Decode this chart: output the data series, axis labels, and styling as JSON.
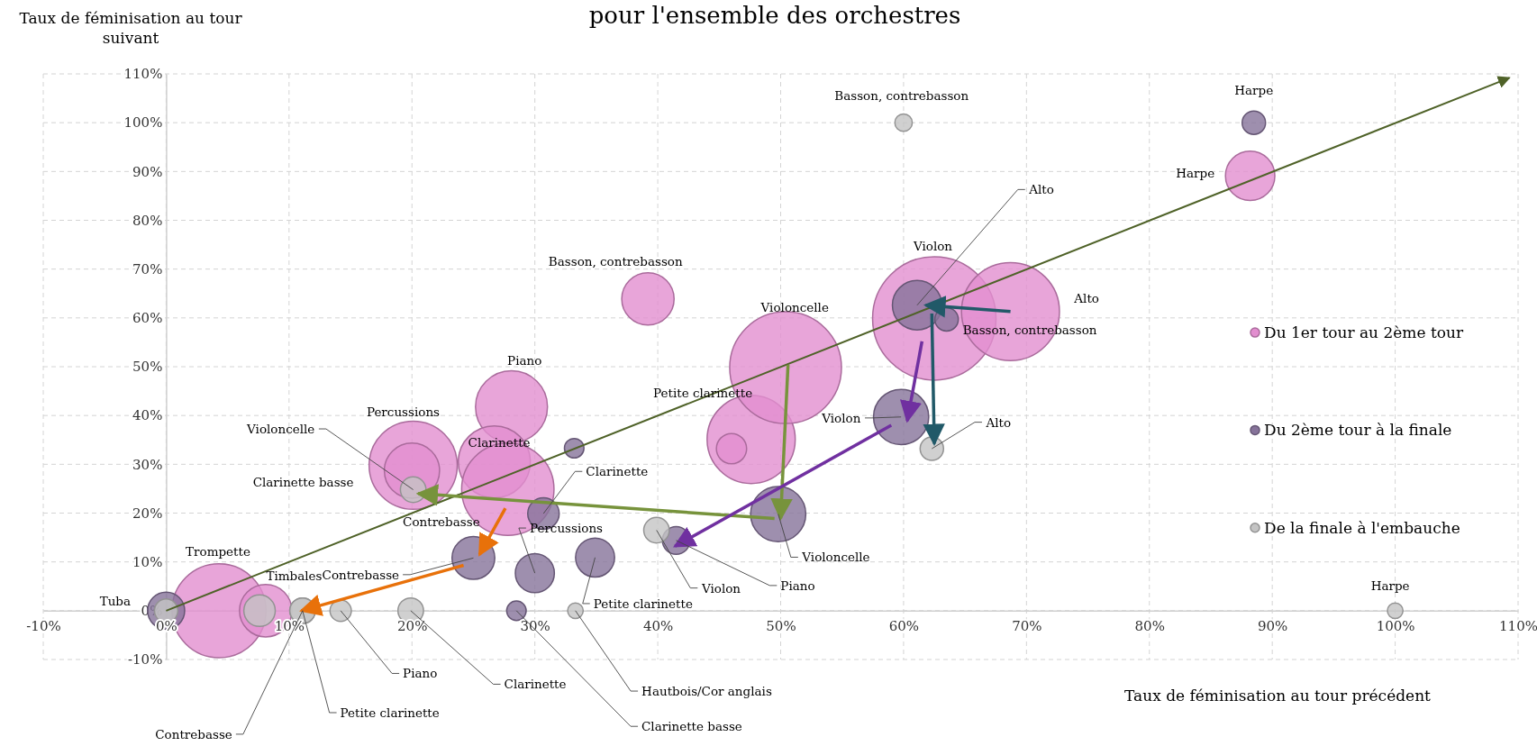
{
  "chart_data": {
    "type": "bubble",
    "title": "pour l'ensemble des orchestres",
    "xlabel": "Taux de féminisation au tour précédent",
    "ylabel": "Taux de féminisation au tour suivant",
    "xlim": [
      -10,
      110
    ],
    "ylim": [
      -10,
      110
    ],
    "xticks": [
      {
        "value": -10,
        "label": "-10%"
      },
      {
        "value": 0,
        "label": "0%"
      },
      {
        "value": 10,
        "label": "10%"
      },
      {
        "value": 20,
        "label": "20%"
      },
      {
        "value": 30,
        "label": "30%"
      },
      {
        "value": 40,
        "label": "40%"
      },
      {
        "value": 50,
        "label": "50%"
      },
      {
        "value": 60,
        "label": "60%"
      },
      {
        "value": 70,
        "label": "70%"
      },
      {
        "value": 80,
        "label": "80%"
      },
      {
        "value": 90,
        "label": "90%"
      },
      {
        "value": 100,
        "label": "100%"
      },
      {
        "value": 110,
        "label": "110%"
      }
    ],
    "yticks": [
      {
        "value": -10,
        "label": "-10%"
      },
      {
        "value": 0,
        "label": "0%"
      },
      {
        "value": 10,
        "label": "10%"
      },
      {
        "value": 20,
        "label": "20%"
      },
      {
        "value": 30,
        "label": "30%"
      },
      {
        "value": 40,
        "label": "40%"
      },
      {
        "value": 50,
        "label": "50%"
      },
      {
        "value": 60,
        "label": "60%"
      },
      {
        "value": 70,
        "label": "70%"
      },
      {
        "value": 80,
        "label": "80%"
      },
      {
        "value": 90,
        "label": "90%"
      },
      {
        "value": 100,
        "label": "100%"
      },
      {
        "value": 110,
        "label": "110%"
      }
    ],
    "grid": true,
    "legend": "right",
    "series": [
      {
        "name": "Du 1er tour au 2ème tour",
        "color": "#e28ecf",
        "x": [
          39.2,
          28.1,
          20.1,
          20,
          26.7,
          27.8,
          4.3,
          8.1,
          47.6,
          50.4,
          62.5,
          68.7,
          88.2,
          46
        ],
        "values": [
          63.9,
          41.8,
          29.8,
          28.7,
          30.5,
          24.9,
          0,
          0,
          35.1,
          49.8,
          59.9,
          61.3,
          89.1,
          33.2
        ],
        "sizes": [
          0.18,
          0.34,
          0.51,
          0.2,
          0.34,
          0.56,
          0.58,
          0.18,
          0.51,
          0.82,
          1,
          0.63,
          0.16,
          0.06
        ]
      },
      {
        "name": "Du 2ème tour à la finale",
        "color": "#86739a",
        "x": [
          0,
          59.8,
          61.1,
          63.5,
          88.5,
          49.8,
          25,
          30,
          34.9,
          30.7,
          41.5,
          28.5,
          33.2
        ],
        "values": [
          0,
          39.7,
          62.6,
          59.7,
          100,
          19.8,
          10.8,
          7.7,
          10.9,
          19.9,
          14.4,
          0,
          33.3
        ],
        "sizes": [
          0.09,
          0.2,
          0.16,
          0.036,
          0.036,
          0.2,
          0.12,
          0.1,
          0.1,
          0.065,
          0.05,
          0.025,
          0.025
        ]
      },
      {
        "name": "De la finale à l'embauche",
        "color": "#c4c4c4",
        "x": [
          60,
          100,
          62.3,
          39.9,
          20.1,
          11.1,
          11.1,
          14.2,
          19.9,
          33.3,
          7.6,
          0
        ],
        "values": [
          100,
          0,
          33.2,
          16.5,
          24.8,
          0,
          0,
          0,
          0,
          0,
          0,
          0
        ],
        "sizes": [
          0.02,
          0.016,
          0.036,
          0.043,
          0.043,
          0.043,
          0.043,
          0.03,
          0.043,
          0.016,
          0.065,
          0.036
        ]
      },
      {
        "type": "line",
        "color": "#4f6228",
        "x": [
          0,
          109.3
        ],
        "values": [
          0,
          109.2
        ]
      },
      {
        "type": "line",
        "color": "#e8710a",
        "x": [
          27.6,
          25.5
        ],
        "values": [
          21,
          11.5
        ]
      },
      {
        "type": "line",
        "color": "#e8710a",
        "x": [
          24.2,
          11
        ],
        "values": [
          9.3,
          0
        ]
      },
      {
        "type": "line",
        "color": "#77933c",
        "x": [
          49.5,
          20.5
        ],
        "values": [
          18.9,
          24
        ]
      },
      {
        "type": "line",
        "color": "#77933c",
        "x": [
          50.6,
          50
        ],
        "values": [
          50.4,
          18.9
        ]
      },
      {
        "type": "line",
        "color": "#7030a0",
        "x": [
          61.5,
          60.3
        ],
        "values": [
          55.2,
          38.9
        ]
      },
      {
        "type": "line",
        "color": "#7030a0",
        "x": [
          59,
          41.4
        ],
        "values": [
          38,
          13.2
        ]
      },
      {
        "type": "line",
        "color": "#215968",
        "x": [
          68.7,
          61.8
        ],
        "values": [
          61.3,
          62.6
        ]
      },
      {
        "type": "line",
        "color": "#215968",
        "x": [
          62.3,
          62.5
        ],
        "values": [
          60.9,
          34.2
        ]
      }
    ],
    "annotations": [
      {
        "text": "Basson, contrebasson",
        "x": 39.2,
        "y": 63.9
      },
      "Piano",
      "Percussions",
      "Clarinette basse",
      {
        "text": "Clarinette",
        "x": 26.7,
        "y": 30.5
      },
      "Contrebasse",
      "Trompette",
      {
        "text": "Timbales",
        "x": 8.1,
        "y": 0
      },
      "Petite clarinette",
      "Violoncelle",
      "Violon",
      "Alto",
      {
        "text": "Harpe",
        "x": 88.2,
        "y": 89.1
      },
      {
        "text": "Tuba",
        "x": 0,
        "y": 0
      },
      {
        "text": "Violon",
        "x": 59.8,
        "y": 39.7
      },
      {
        "text": "Alto",
        "x": 61.1,
        "y": 62.6
      },
      {
        "text": "Basson, contrebasson",
        "x": 63.5,
        "y": 59.7
      },
      {
        "text": "Harpe",
        "x": 88.5,
        "y": 100
      },
      {
        "text": "Violoncelle",
        "x": 49.8,
        "y": 19.8
      },
      {
        "text": "Contrebasse",
        "x": 25,
        "y": 10.8
      },
      {
        "text": "Percussions",
        "x": 30,
        "y": 7.7
      },
      {
        "text": "Petite clarinette",
        "x": 34.9,
        "y": 10.9
      },
      {
        "text": "Clarinette",
        "x": 30.7,
        "y": 19.9
      },
      {
        "text": "Piano",
        "x": 41.5,
        "y": 14.4
      },
      {
        "text": "Clarinette basse",
        "x": 28.5,
        "y": 0
      },
      {
        "text": "Basson, contrebasson",
        "x": 60,
        "y": 100
      },
      {
        "text": "Harpe",
        "x": 100,
        "y": 0
      },
      {
        "text": "Alto",
        "x": 62.3,
        "y": 33.2
      },
      {
        "text": "Violon",
        "x": 39.9,
        "y": 16.5
      },
      {
        "text": "Violoncelle",
        "x": 20.1,
        "y": 24.8
      },
      {
        "text": "Contrebasse",
        "x": 11.1,
        "y": 0
      },
      {
        "text": "Petite clarinette",
        "x": 11.1,
        "y": 0
      },
      {
        "text": "Piano",
        "x": 14.2,
        "y": 0
      },
      {
        "text": "Clarinette",
        "x": 19.9,
        "y": 0
      },
      {
        "text": "Hautbois/Cor anglais",
        "x": 33.3,
        "y": 0
      }
    ]
  }
}
